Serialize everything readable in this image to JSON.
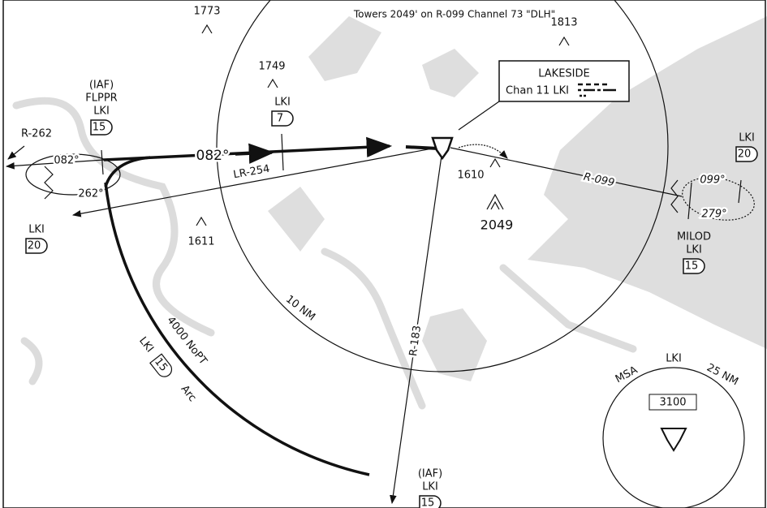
{
  "header_note": "Towers 2049' on R-099 Channel 73 \"DLH\"",
  "elevations": [
    "1773",
    "1813",
    "1749",
    "1610",
    "2049",
    "1611"
  ],
  "navaid": {
    "name": "LAKESIDE",
    "frequency": "Chan 11 LKI"
  },
  "fixes": [
    {
      "role": "(IAF)",
      "name": "FLPPR",
      "navaid": "LKI",
      "distance": "15"
    },
    {
      "navaid": "LKI",
      "distance": "7"
    },
    {
      "navaid": "LKI",
      "distance": "20"
    },
    {
      "navaid": "LKI",
      "distance": "20"
    },
    {
      "name": "MILOD",
      "navaid": "LKI",
      "distance": "15"
    },
    {
      "role": "(IAF)",
      "navaid": "LKI",
      "distance": "15"
    }
  ],
  "courses": {
    "inbound": "082°",
    "hold_left_in": "082°",
    "hold_left_out": "262°",
    "hold_right_in": "099°",
    "hold_right_out": "279°"
  },
  "radials": [
    "R-262",
    "LR-254",
    "R-099",
    "R-183"
  ],
  "range_ring": "10 NM",
  "arc": {
    "altitude": "4000 NoPT",
    "navaid": "LKI",
    "distance": "15",
    "label": "Arc"
  },
  "msa": {
    "label": "MSA",
    "navaid": "LKI",
    "radius": "25 NM",
    "altitude": "3100"
  }
}
